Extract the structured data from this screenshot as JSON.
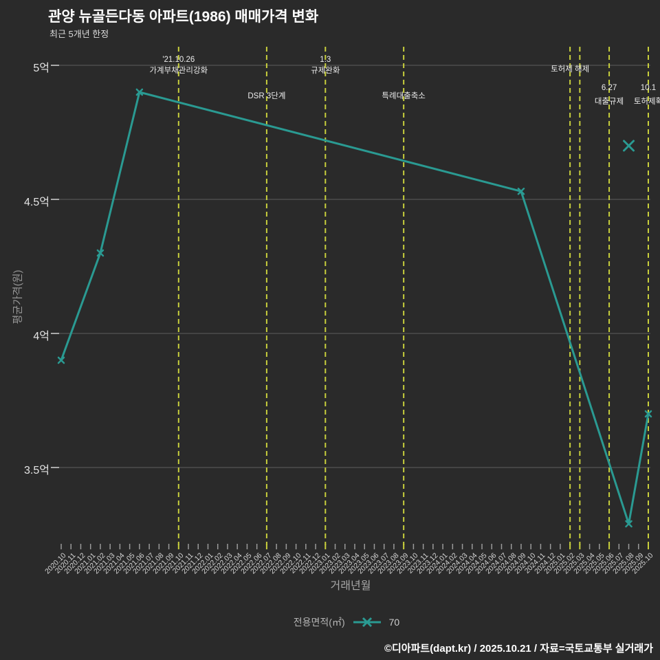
{
  "header": {
    "title": "관양 뉴골든다동 아파트(1986) 매매가격 변화",
    "subtitle": "최근 5개년 한정"
  },
  "footer": {
    "text": "©디아파트(dapt.kr) / 2025.10.21 / 자료=국토교통부 실거래가"
  },
  "colors": {
    "background": "#2a2a2a",
    "line": "#2a9a92",
    "annotation": "#c9d03c",
    "grid": "#5e5e5e",
    "tick": "#9b9b9b"
  },
  "chart_data": {
    "type": "line",
    "title": "관양 뉴골든다동 아파트(1986) 매매가격 변화",
    "subtitle": "최근 5개년 한정",
    "xlabel": "거래년월",
    "ylabel": "평균가격(원)",
    "unit": "억",
    "ylim": [
      3.21,
      5.07
    ],
    "grid": "horizontal",
    "legend": {
      "label": "전용면적(㎡)",
      "value": "70",
      "position": "bottom-center",
      "marker": "x"
    },
    "y_ticks": [
      {
        "label": "5억",
        "value": 5.0
      },
      {
        "label": "4.5억",
        "value": 4.5
      },
      {
        "label": "4억",
        "value": 4.0
      },
      {
        "label": "3.5억",
        "value": 3.5
      }
    ],
    "x_categories": [
      "2020.10",
      "2020.11",
      "2020.12",
      "2021.01",
      "2021.02",
      "2021.03",
      "2021.04",
      "2021.05",
      "2021.06",
      "2021.07",
      "2021.08",
      "2021.09",
      "2021.10",
      "2021.11",
      "2021.12",
      "2022.01",
      "2022.02",
      "2022.03",
      "2022.04",
      "2022.05",
      "2022.06",
      "2022.07",
      "2022.08",
      "2022.09",
      "2022.10",
      "2022.11",
      "2022.12",
      "2023.01",
      "2023.02",
      "2023.03",
      "2023.04",
      "2023.05",
      "2023.06",
      "2023.07",
      "2023.08",
      "2023.09",
      "2023.10",
      "2023.11",
      "2023.12",
      "2024.01",
      "2024.02",
      "2024.03",
      "2024.04",
      "2024.05",
      "2024.06",
      "2024.07",
      "2024.08",
      "2024.09",
      "2024.10",
      "2024.11",
      "2024.12",
      "2025.01",
      "2025.02",
      "2025.03",
      "2025.04",
      "2025.05",
      "2025.06",
      "2025.07",
      "2025.08",
      "2025.09",
      "2025.10"
    ],
    "series": [
      {
        "name": "70",
        "marker": "x",
        "color": "#2a9a92",
        "points": [
          [
            "2020.10",
            3.9
          ],
          [
            "2021.02",
            4.3
          ],
          [
            "2021.06",
            4.9
          ],
          [
            "2024.09",
            4.53
          ],
          [
            "2025.08",
            3.29
          ],
          [
            "2025.10",
            3.7
          ]
        ]
      }
    ],
    "isolated_points": [
      {
        "x": "2025.08",
        "y": 4.7
      }
    ],
    "annotations": [
      {
        "x": "2021.10",
        "row": "high",
        "lines": [
          "'21.10.26",
          "가계부채관리강화"
        ]
      },
      {
        "x": "2022.07",
        "row": "mid",
        "lines": [
          "DSR 3단계"
        ]
      },
      {
        "x": "2023.01",
        "row": "high",
        "lines": [
          "1.3",
          "규제완화"
        ]
      },
      {
        "x": "2023.09",
        "row": "mid",
        "lines": [
          "특례대출축소"
        ]
      },
      {
        "x": "2025.02",
        "row": "high2",
        "lines": [
          "토허제 해제"
        ]
      },
      {
        "x": "2025.03",
        "row": "none",
        "lines": []
      },
      {
        "x": "2025.06",
        "row": "low",
        "lines": [
          "6.27",
          "대출규제"
        ]
      },
      {
        "x": "2025.10",
        "row": "low",
        "lines": [
          "10.1",
          "토허제확"
        ]
      }
    ],
    "annotation_rows": {
      "high": [
        81,
        94
      ],
      "high2": [
        92
      ],
      "mid": [
        131
      ],
      "low": [
        122,
        139
      ],
      "none": []
    }
  }
}
